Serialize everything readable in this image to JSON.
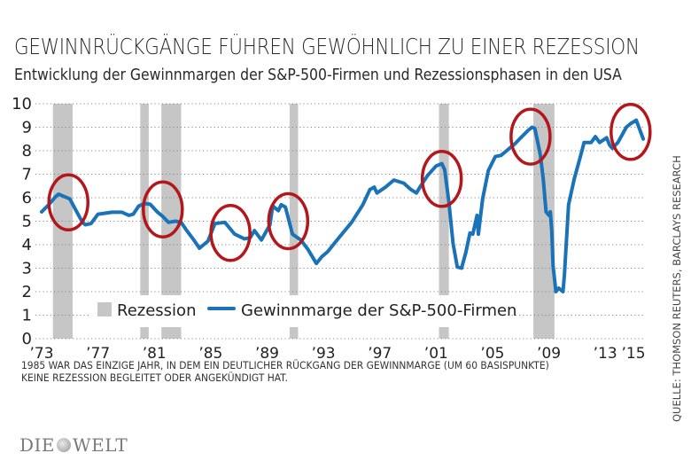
{
  "header": {
    "title": "GEWINNRÜCKGÄNGE FÜHREN GEWÖHNLICH ZU EINER REZESSION",
    "subtitle": "Entwicklung der Gewinnmargen der S&P-500-Firmen und Rezessionsphasen in den USA"
  },
  "footer": {
    "note_line1": "1985 WAR DAS EINZIGE JAHR, IN DEM EIN DEUTLICHER RÜCKGANG DER GEWINNMARGE (UM 60 BASISPUNKTE)",
    "note_line2": "KEINE REZESSION BEGLEITET ODER ANGEKÜNDIGT HAT.",
    "source": "QUELLE: THOMSON REUTERS, BARCLAYS RESEARCH",
    "logo_left": "DIE",
    "logo_right": "WELT"
  },
  "chart_data": {
    "type": "line",
    "title": "GEWINNRÜCKGÄNGE FÜHREN GEWÖHNLICH ZU EINER REZESSION",
    "subtitle": "Entwicklung der Gewinnmargen der S&P-500-Firmen und Rezessionsphasen in den USA",
    "xlabel": "",
    "ylabel": "",
    "xlim": [
      1973,
      2015.8
    ],
    "ylim": [
      0,
      10
    ],
    "grid": true,
    "legend_position": "bottom-center",
    "yticks": [
      0,
      1,
      2,
      3,
      4,
      5,
      6,
      7,
      8,
      9,
      10
    ],
    "xticks": [
      {
        "value": 1973,
        "label": "’73"
      },
      {
        "value": 1977,
        "label": "’77"
      },
      {
        "value": 1981,
        "label": "’81"
      },
      {
        "value": 1985,
        "label": "’85"
      },
      {
        "value": 1989,
        "label": "’89"
      },
      {
        "value": 1993,
        "label": "’93"
      },
      {
        "value": 1997,
        "label": "’97"
      },
      {
        "value": 2001,
        "label": "’01"
      },
      {
        "value": 2005,
        "label": "’05"
      },
      {
        "value": 2009,
        "label": "’09"
      },
      {
        "value": 2013,
        "label": "’13"
      },
      {
        "value": 2015,
        "label": "’15"
      }
    ],
    "legend": [
      {
        "key": "recession",
        "label": "Rezession",
        "color": "#c6c6c6"
      },
      {
        "key": "margin",
        "label": "Gewinnmarge der S&P-500-Firmen",
        "color": "#1a72b8"
      }
    ],
    "recessions": [
      {
        "start": 1973.8,
        "end": 1975.2
      },
      {
        "start": 1980.0,
        "end": 1980.6
      },
      {
        "start": 1981.5,
        "end": 1982.9
      },
      {
        "start": 1990.6,
        "end": 1991.2
      },
      {
        "start": 2001.2,
        "end": 2001.9
      },
      {
        "start": 2007.9,
        "end": 2009.4
      }
    ],
    "series": [
      {
        "name": "Gewinnmarge der S&P-500-Firmen",
        "color": "#1a72b8",
        "x": [
          1973.0,
          1973.5,
          1974.0,
          1974.2,
          1974.6,
          1975.0,
          1975.4,
          1975.9,
          1976.1,
          1976.5,
          1977.0,
          1978.0,
          1978.7,
          1979.2,
          1979.5,
          1979.9,
          1980.3,
          1980.7,
          1981.2,
          1981.6,
          1982.0,
          1982.5,
          1982.9,
          1983.3,
          1983.8,
          1984.2,
          1984.8,
          1985.3,
          1986.0,
          1986.7,
          1987.4,
          1987.8,
          1988.1,
          1988.6,
          1989.2,
          1989.4,
          1989.8,
          1990.0,
          1990.3,
          1990.8,
          1991.4,
          1991.9,
          1992.5,
          1992.9,
          1993.3,
          1994.1,
          1995.0,
          1995.8,
          1996.3,
          1996.6,
          1996.8,
          1997.4,
          1998.0,
          1998.7,
          1999.2,
          1999.6,
          1999.9,
          2000.4,
          2001.0,
          2001.4,
          2001.6,
          2001.9,
          2002.2,
          2002.5,
          2002.8,
          2003.1,
          2003.4,
          2003.6,
          2003.9,
          2004.0,
          2004.3,
          2004.7,
          2005.2,
          2005.6,
          2006.0,
          2006.6,
          2007.0,
          2007.5,
          2007.8,
          2008.0,
          2008.2,
          2008.4,
          2008.6,
          2008.8,
          2009.0,
          2009.1,
          2009.2,
          2009.3,
          2009.5,
          2009.7,
          2010.0,
          2010.1,
          2010.4,
          2010.8,
          2011.3,
          2011.5,
          2012.0,
          2012.3,
          2012.6,
          2013.1,
          2013.3,
          2013.5,
          2013.9,
          2014.5,
          2014.8,
          2015.2,
          2015.7
        ],
        "values": [
          5.4,
          5.7,
          6.05,
          6.15,
          6.05,
          5.95,
          5.5,
          4.95,
          4.85,
          4.9,
          5.3,
          5.38,
          5.38,
          5.25,
          5.3,
          5.65,
          5.75,
          5.72,
          5.4,
          5.2,
          4.95,
          5.0,
          4.95,
          4.6,
          4.2,
          3.85,
          4.15,
          4.9,
          4.95,
          4.45,
          4.25,
          4.3,
          4.6,
          4.2,
          4.85,
          5.65,
          5.45,
          5.7,
          5.6,
          4.45,
          4.2,
          3.8,
          3.2,
          3.5,
          3.7,
          4.3,
          4.95,
          5.7,
          6.35,
          6.45,
          6.2,
          6.45,
          6.75,
          6.62,
          6.35,
          6.2,
          6.5,
          6.95,
          7.35,
          7.45,
          7.2,
          5.85,
          4.05,
          3.05,
          3.0,
          3.65,
          4.5,
          4.45,
          5.25,
          4.45,
          5.95,
          7.15,
          7.75,
          7.8,
          8.0,
          8.3,
          8.55,
          8.85,
          9.0,
          8.95,
          8.4,
          7.8,
          6.8,
          5.4,
          5.25,
          5.4,
          4.6,
          3.1,
          2.0,
          2.15,
          2.0,
          2.7,
          5.7,
          6.8,
          7.9,
          8.35,
          8.35,
          8.6,
          8.35,
          8.55,
          8.25,
          8.1,
          8.35,
          9.0,
          9.15,
          9.3,
          8.5
        ]
      }
    ],
    "annotations": [
      {
        "type": "circle",
        "label": "1974 decline",
        "center_x": 1974.9,
        "center_y": 5.8
      },
      {
        "type": "circle",
        "label": "1981 decline",
        "center_x": 1981.6,
        "center_y": 5.5
      },
      {
        "type": "circle",
        "label": "1985 decline",
        "center_x": 1986.4,
        "center_y": 4.5
      },
      {
        "type": "circle",
        "label": "1990 decline",
        "center_x": 1990.5,
        "center_y": 5.0
      },
      {
        "type": "circle",
        "label": "2001 decline",
        "center_x": 2001.4,
        "center_y": 6.8
      },
      {
        "type": "circle",
        "label": "2007 decline",
        "center_x": 2007.7,
        "center_y": 8.6
      },
      {
        "type": "circle",
        "label": "2015 decline",
        "center_x": 2014.8,
        "center_y": 8.8
      }
    ]
  }
}
